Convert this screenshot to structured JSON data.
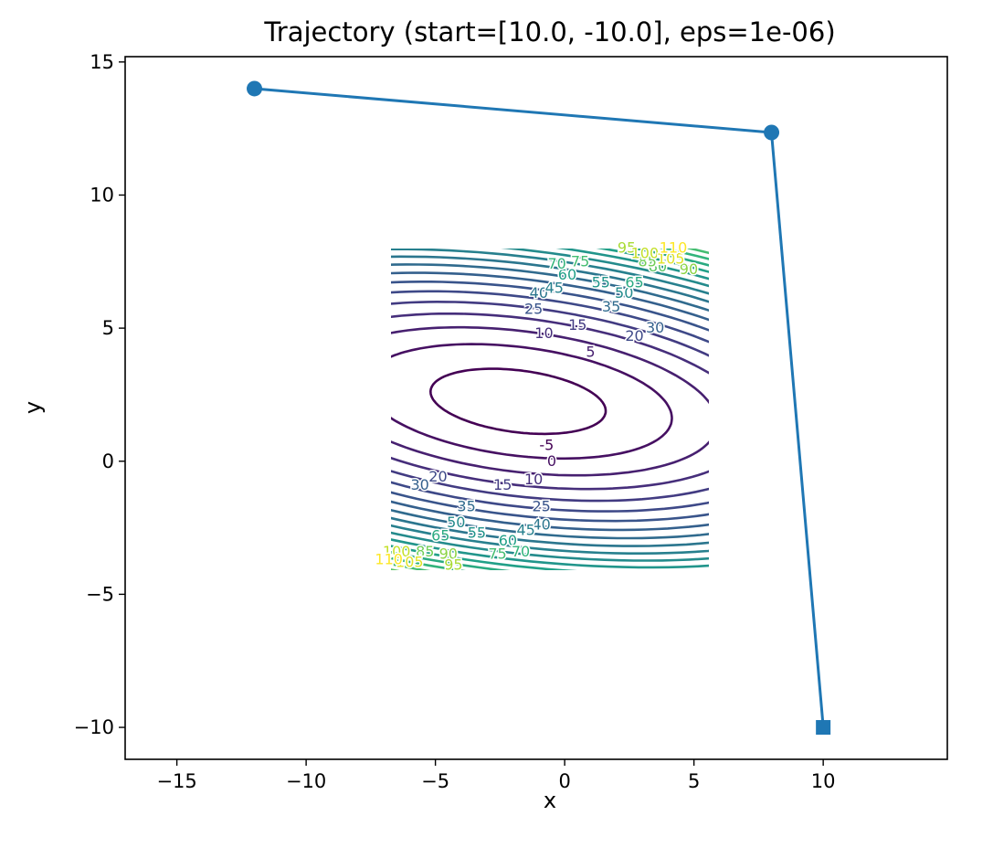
{
  "chart_data": {
    "type": "line",
    "title": "Trajectory (start=[10.0, -10.0], eps=1e-06)",
    "xlabel": "x",
    "ylabel": "y",
    "xlim": [
      -17,
      14.8
    ],
    "ylim": [
      -11.2,
      15.2
    ],
    "xticks": [
      -15,
      -10,
      -5,
      0,
      5,
      10
    ],
    "yticks": [
      -10,
      -5,
      0,
      5,
      10,
      15
    ],
    "xtick_labels": [
      "−15",
      "−10",
      "−5",
      "0",
      "5",
      "10"
    ],
    "ytick_labels": [
      "−10",
      "−5",
      "0",
      "5",
      "10",
      "15"
    ],
    "grid": false,
    "trajectory": {
      "color": "#1f77b4",
      "points": [
        {
          "x": 10.0,
          "y": -10.0,
          "marker": "square"
        },
        {
          "x": 8.0,
          "y": 12.35,
          "marker": "circle"
        },
        {
          "x": -12.0,
          "y": 14.0,
          "marker": "circle"
        }
      ]
    },
    "contour": {
      "x_range": [
        -7,
        5
      ],
      "y_range": [
        -4,
        8
      ],
      "colormap": "viridis",
      "levels": [
        -5,
        0,
        5,
        10,
        15,
        20,
        25,
        30,
        35,
        40,
        45,
        50,
        55,
        60,
        65,
        70,
        75,
        80,
        85,
        90,
        95,
        100,
        105,
        110
      ],
      "labels": [
        {
          "text": "-5",
          "x": -0.7,
          "y": 0.6
        },
        {
          "text": "0",
          "x": -0.5,
          "y": 0.0
        },
        {
          "text": "5",
          "x": 1.0,
          "y": 4.1
        },
        {
          "text": "10",
          "x": -0.8,
          "y": 4.8
        },
        {
          "text": "15",
          "x": 0.5,
          "y": 5.1
        },
        {
          "text": "20",
          "x": 2.7,
          "y": 4.7
        },
        {
          "text": "25",
          "x": -1.2,
          "y": 5.7
        },
        {
          "text": "30",
          "x": 3.5,
          "y": 5.0
        },
        {
          "text": "35",
          "x": 1.8,
          "y": 5.8
        },
        {
          "text": "40",
          "x": -1.0,
          "y": 6.3
        },
        {
          "text": "45",
          "x": -0.4,
          "y": 6.5
        },
        {
          "text": "50",
          "x": 2.3,
          "y": 6.3
        },
        {
          "text": "55",
          "x": 1.4,
          "y": 6.7
        },
        {
          "text": "60",
          "x": 0.1,
          "y": 7.0
        },
        {
          "text": "65",
          "x": 2.7,
          "y": 6.7
        },
        {
          "text": "70",
          "x": -0.3,
          "y": 7.4
        },
        {
          "text": "75",
          "x": 0.6,
          "y": 7.5
        },
        {
          "text": "80",
          "x": 3.6,
          "y": 7.3
        },
        {
          "text": "85",
          "x": 3.2,
          "y": 7.5
        },
        {
          "text": "90",
          "x": 4.8,
          "y": 7.2
        },
        {
          "text": "95",
          "x": 2.4,
          "y": 8.0
        },
        {
          "text": "100",
          "x": 3.1,
          "y": 7.8
        },
        {
          "text": "105",
          "x": 4.1,
          "y": 7.6
        },
        {
          "text": "110",
          "x": 4.2,
          "y": 8.0
        },
        {
          "text": "10",
          "x": -1.2,
          "y": -0.7
        },
        {
          "text": "15",
          "x": -2.4,
          "y": -0.9
        },
        {
          "text": "20",
          "x": -4.9,
          "y": -0.6
        },
        {
          "text": "25",
          "x": -0.9,
          "y": -1.7
        },
        {
          "text": "30",
          "x": -5.6,
          "y": -0.9
        },
        {
          "text": "35",
          "x": -3.8,
          "y": -1.7
        },
        {
          "text": "40",
          "x": -0.9,
          "y": -2.4
        },
        {
          "text": "45",
          "x": -1.5,
          "y": -2.6
        },
        {
          "text": "50",
          "x": -4.2,
          "y": -2.3
        },
        {
          "text": "55",
          "x": -3.4,
          "y": -2.7
        },
        {
          "text": "60",
          "x": -2.2,
          "y": -3.0
        },
        {
          "text": "65",
          "x": -4.8,
          "y": -2.8
        },
        {
          "text": "70",
          "x": -1.7,
          "y": -3.4
        },
        {
          "text": "75",
          "x": -2.6,
          "y": -3.5
        },
        {
          "text": "85",
          "x": -5.4,
          "y": -3.4
        },
        {
          "text": "90",
          "x": -4.5,
          "y": -3.5
        },
        {
          "text": "95",
          "x": -4.3,
          "y": -3.9
        },
        {
          "text": "100",
          "x": -6.5,
          "y": -3.4
        },
        {
          "text": "105",
          "x": -6.0,
          "y": -3.8
        },
        {
          "text": "110",
          "x": -6.8,
          "y": -3.7
        }
      ]
    }
  }
}
